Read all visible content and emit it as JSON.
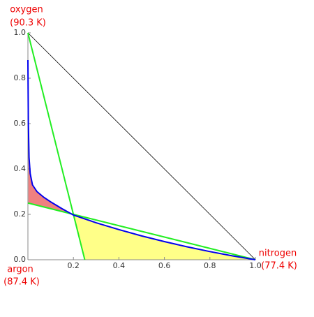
{
  "chart_data": {
    "type": "line",
    "xlim": [
      0,
      1
    ],
    "ylim": [
      0,
      1
    ],
    "xticks": [
      0.2,
      0.4,
      0.6,
      0.8,
      {
        "value": 1,
        "label": "1.0"
      }
    ],
    "yticks": [
      {
        "value": 0,
        "label": "0.0"
      },
      0.2,
      0.4,
      0.6,
      0.8,
      {
        "value": 1,
        "label": "1.0"
      }
    ],
    "series": [
      {
        "color": "#000000",
        "x": [
          0,
          1
        ],
        "values": [
          1,
          0
        ]
      },
      {
        "color": "#22ee22",
        "x": [
          0,
          0.25
        ],
        "values": [
          1,
          0
        ]
      },
      {
        "color": "#22ee22",
        "x": [
          0,
          1
        ],
        "values": [
          0.25,
          0
        ]
      },
      {
        "color": "#0000ee",
        "x": [
          0,
          0.002,
          0.005,
          0.01,
          0.02,
          0.04,
          0.07,
          0.1,
          0.15,
          0.2,
          0.3,
          0.4,
          0.5,
          0.6,
          0.7,
          0.8,
          0.9,
          1
        ],
        "values": [
          0.88,
          0.6,
          0.45,
          0.38,
          0.33,
          0.3,
          0.275,
          0.255,
          0.225,
          0.197,
          0.163,
          0.133,
          0.105,
          0.08,
          0.057,
          0.036,
          0.017,
          0
        ]
      }
    ],
    "region_colors": [
      "#f08080",
      "#ffff88"
    ],
    "annotations": [
      {
        "text": "oxygen",
        "color": "#ee0000"
      },
      {
        "text": "(90.3 K)",
        "color": "#ee0000"
      },
      {
        "text": "nitrogen",
        "color": "#ee0000"
      },
      {
        "text": "(77.4 K)",
        "color": "#ee0000"
      },
      {
        "text": "argon",
        "color": "#ee0000"
      },
      {
        "text": "(87.4 K)",
        "color": "#ee0000"
      }
    ]
  }
}
